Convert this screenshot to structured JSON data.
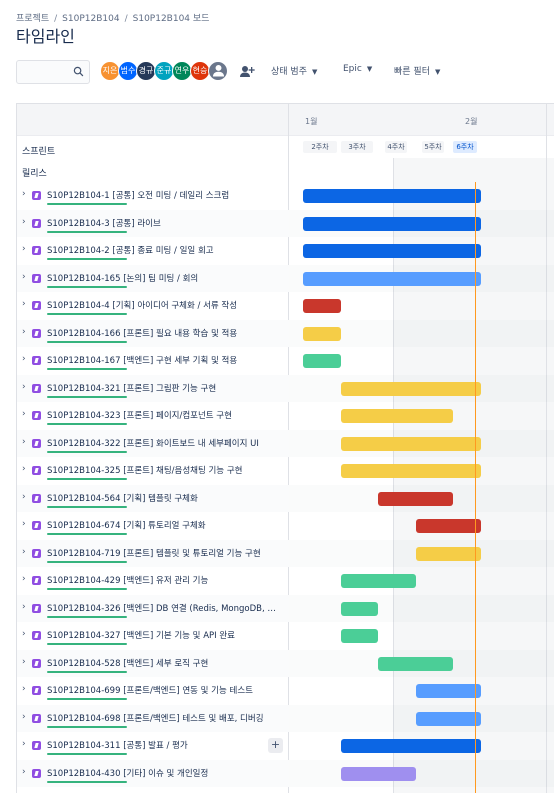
{
  "breadcrumb": [
    "프로젝트",
    "S10P12B104",
    "S10P12B104 보드"
  ],
  "title": "타임라인",
  "search": {
    "value": "",
    "placeholder": ""
  },
  "avatars": [
    {
      "initials": "지은",
      "color": "#f79232"
    },
    {
      "initials": "범수",
      "color": "#0065ff"
    },
    {
      "initials": "경규",
      "color": "#253858"
    },
    {
      "initials": "준규",
      "color": "#00a3bf"
    },
    {
      "initials": "연우",
      "color": "#00875a"
    },
    {
      "initials": "현승",
      "color": "#de350b"
    },
    {
      "initials": "",
      "color": "#6b778c"
    }
  ],
  "filters": {
    "status": "상태 범주",
    "epic": "Epic",
    "quick": "빠른 필터"
  },
  "months": [
    "1월",
    "2월"
  ],
  "weeks": [
    "2주차",
    "3주차",
    "4주차",
    "5주차",
    "6주차"
  ],
  "section_labels": {
    "sprint": "스프린트",
    "release": "릴리스"
  },
  "colors": {
    "blue_dark": "#0c66e4",
    "blue_light": "#579dff",
    "red": "#c9372c",
    "yellow": "#f5cd47",
    "green": "#4bce97",
    "purple": "#9f8fef",
    "today": "#ff991f"
  },
  "issues": [
    {
      "key": "S10P12B104-1",
      "title": "[공통] 오전 미팅 / 데일리 스크럼",
      "bar": {
        "start": 2,
        "end": 6.75,
        "color": "blue_dark"
      }
    },
    {
      "key": "S10P12B104-3",
      "title": "[공통] 라이브",
      "bar": {
        "start": 2,
        "end": 6.75,
        "color": "blue_dark"
      }
    },
    {
      "key": "S10P12B104-2",
      "title": "[공통] 종료 미팅 / 일일 회고",
      "bar": {
        "start": 2,
        "end": 6.75,
        "color": "blue_dark"
      }
    },
    {
      "key": "S10P12B104-165",
      "title": "[논의] 팀 미팅 / 회의",
      "bar": {
        "start": 2,
        "end": 6.75,
        "color": "blue_light"
      }
    },
    {
      "key": "S10P12B104-4",
      "title": "[기획] 아이디어 구체화 / 서류 작성",
      "bar": {
        "start": 2,
        "end": 3,
        "color": "red"
      }
    },
    {
      "key": "S10P12B104-166",
      "title": "[프론트] 필요 내용 학습 및 적용",
      "bar": {
        "start": 2,
        "end": 3,
        "color": "yellow"
      }
    },
    {
      "key": "S10P12B104-167",
      "title": "[백엔드] 구현 세부 기획 및 적용",
      "bar": {
        "start": 2,
        "end": 3,
        "color": "green"
      }
    },
    {
      "key": "S10P12B104-321",
      "title": "[프론트] 그림판 기능 구현",
      "bar": {
        "start": 3,
        "end": 6.75,
        "color": "yellow"
      }
    },
    {
      "key": "S10P12B104-323",
      "title": "[프론트] 페이지/컴포넌트 구현",
      "bar": {
        "start": 3,
        "end": 6,
        "color": "yellow"
      }
    },
    {
      "key": "S10P12B104-322",
      "title": "[프론트] 화이트보드 내 세부페이지 UI",
      "bar": {
        "start": 3,
        "end": 6.75,
        "color": "yellow"
      }
    },
    {
      "key": "S10P12B104-325",
      "title": "[프론트] 채팅/음성채팅 기능 구현",
      "bar": {
        "start": 3,
        "end": 6.75,
        "color": "yellow"
      }
    },
    {
      "key": "S10P12B104-564",
      "title": "[기획] 템플릿 구체화",
      "bar": {
        "start": 4,
        "end": 6,
        "color": "red"
      }
    },
    {
      "key": "S10P12B104-674",
      "title": "[기획] 튜토리얼 구체화",
      "bar": {
        "start": 5,
        "end": 6.75,
        "color": "red"
      }
    },
    {
      "key": "S10P12B104-719",
      "title": "[프론트] 템플릿 및 튜토리얼 기능 구현",
      "bar": {
        "start": 5,
        "end": 6.75,
        "color": "yellow"
      }
    },
    {
      "key": "S10P12B104-429",
      "title": "[백엔드] 유저 관리 기능",
      "bar": {
        "start": 3,
        "end": 5,
        "color": "green"
      }
    },
    {
      "key": "S10P12B104-326",
      "title": "[백엔드] DB 연결 (Redis, MongoDB, MyS...",
      "bar": {
        "start": 3,
        "end": 4,
        "color": "green"
      }
    },
    {
      "key": "S10P12B104-327",
      "title": "[백엔드] 기본 기능 및 API 완료",
      "bar": {
        "start": 3,
        "end": 4,
        "color": "green"
      }
    },
    {
      "key": "S10P12B104-528",
      "title": "[백엔드] 세부 로직 구현",
      "bar": {
        "start": 4,
        "end": 6,
        "color": "green"
      }
    },
    {
      "key": "S10P12B104-699",
      "title": "[프론트/백엔드] 연동 및 기능 테스트",
      "bar": {
        "start": 5,
        "end": 6.75,
        "color": "blue_light"
      }
    },
    {
      "key": "S10P12B104-698",
      "title": "[프론트/백엔드] 테스트 및 배포, 디버깅",
      "bar": {
        "start": 5,
        "end": 6.75,
        "color": "blue_light"
      }
    },
    {
      "key": "S10P12B104-311",
      "title": "[공통] 발표 / 평가",
      "bar": {
        "start": 3,
        "end": 6.75,
        "color": "blue_dark"
      }
    },
    {
      "key": "S10P12B104-430",
      "title": "[기타] 이슈 및 개인일정",
      "bar": {
        "start": 3,
        "end": 5,
        "color": "purple"
      }
    }
  ]
}
